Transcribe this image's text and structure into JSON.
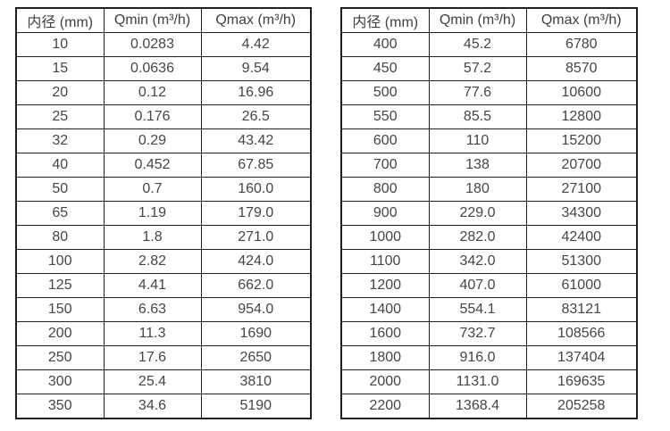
{
  "page": {
    "background_color": "#ffffff",
    "text_color": "#454545",
    "border_color": "#1f1f1f"
  },
  "tables": [
    {
      "name": "flow-spec-table-small-diameters",
      "headers": [
        "内径 (mm)",
        "Qmin (m³/h)",
        "Qmax (m³/h)"
      ],
      "rows": [
        [
          "10",
          "0.0283",
          "4.42"
        ],
        [
          "15",
          "0.0636",
          "9.54"
        ],
        [
          "20",
          "0.12",
          "16.96"
        ],
        [
          "25",
          "0.176",
          "26.5"
        ],
        [
          "32",
          "0.29",
          "43.42"
        ],
        [
          "40",
          "0.452",
          "67.85"
        ],
        [
          "50",
          "0.7",
          "160.0"
        ],
        [
          "65",
          "1.19",
          "179.0"
        ],
        [
          "80",
          "1.8",
          "271.0"
        ],
        [
          "100",
          "2.82",
          "424.0"
        ],
        [
          "125",
          "4.41",
          "662.0"
        ],
        [
          "150",
          "6.63",
          "954.0"
        ],
        [
          "200",
          "11.3",
          "1690"
        ],
        [
          "250",
          "17.6",
          "2650"
        ],
        [
          "300",
          "25.4",
          "3810"
        ],
        [
          "350",
          "34.6",
          "5190"
        ]
      ]
    },
    {
      "name": "flow-spec-table-large-diameters",
      "headers": [
        "内径 (mm)",
        "Qmin (m³/h)",
        "Qmax (m³/h)"
      ],
      "rows": [
        [
          "400",
          "45.2",
          "6780"
        ],
        [
          "450",
          "57.2",
          "8570"
        ],
        [
          "500",
          "77.6",
          "10600"
        ],
        [
          "550",
          "85.5",
          "12800"
        ],
        [
          "600",
          "110",
          "15200"
        ],
        [
          "700",
          "138",
          "20700"
        ],
        [
          "800",
          "180",
          "27100"
        ],
        [
          "900",
          "229.0",
          "34300"
        ],
        [
          "1000",
          "282.0",
          "42400"
        ],
        [
          "1100",
          "342.0",
          "51300"
        ],
        [
          "1200",
          "407.0",
          "61000"
        ],
        [
          "1400",
          "554.1",
          "83121"
        ],
        [
          "1600",
          "732.7",
          "108566"
        ],
        [
          "1800",
          "916.0",
          "137404"
        ],
        [
          "2000",
          "1131.0",
          "169635"
        ],
        [
          "2200",
          "1368.4",
          "205258"
        ]
      ]
    }
  ]
}
